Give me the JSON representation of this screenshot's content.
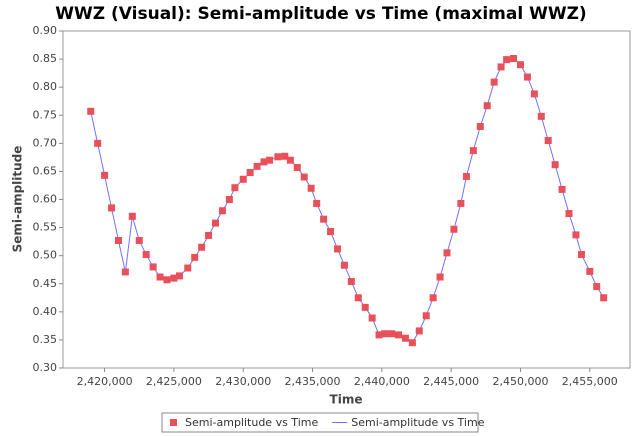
{
  "chart_data": {
    "type": "line",
    "title": "WWZ (Visual): Semi-amplitude vs Time (maximal WWZ)",
    "x_label": "Time",
    "y_label": "Semi-amplitude",
    "x": [
      2419000,
      2419500,
      2420000,
      2420500,
      2421000,
      2421500,
      2422000,
      2422500,
      2423000,
      2423500,
      2424000,
      2424500,
      2425000,
      2425400,
      2426000,
      2426500,
      2427000,
      2427500,
      2428000,
      2428500,
      2429000,
      2429400,
      2430000,
      2430500,
      2431000,
      2431500,
      2431900,
      2432500,
      2433000,
      2433400,
      2433900,
      2434400,
      2434900,
      2435300,
      2435800,
      2436300,
      2436800,
      2437300,
      2437800,
      2438300,
      2438800,
      2439300,
      2439800,
      2440200,
      2440700,
      2441200,
      2441700,
      2442200,
      2442700,
      2443200,
      2443700,
      2444200,
      2444700,
      2445200,
      2445700,
      2446100,
      2446600,
      2447100,
      2447600,
      2448100,
      2448600,
      2449000,
      2449500,
      2450000,
      2450500,
      2451000,
      2451500,
      2452000,
      2452500,
      2453000,
      2453500,
      2454000,
      2454400,
      2455000,
      2455500,
      2456000
    ],
    "series": [
      {
        "name": "Semi-amplitude vs Time",
        "style": "markers",
        "color": "#e8505a",
        "values": [
          0.757,
          0.7,
          0.643,
          0.585,
          0.527,
          0.471,
          0.57,
          0.527,
          0.502,
          0.48,
          0.462,
          0.457,
          0.46,
          0.464,
          0.478,
          0.497,
          0.515,
          0.536,
          0.558,
          0.58,
          0.6,
          0.621,
          0.636,
          0.648,
          0.659,
          0.667,
          0.67,
          0.676,
          0.677,
          0.67,
          0.657,
          0.64,
          0.62,
          0.593,
          0.565,
          0.543,
          0.512,
          0.483,
          0.454,
          0.425,
          0.408,
          0.389,
          0.359,
          0.361,
          0.361,
          0.359,
          0.353,
          0.345,
          0.366,
          0.393,
          0.425,
          0.462,
          0.505,
          0.547,
          0.593,
          0.641,
          0.687,
          0.73,
          0.767,
          0.809,
          0.836,
          0.849,
          0.851,
          0.84,
          0.818,
          0.788,
          0.748,
          0.705,
          0.662,
          0.618,
          0.575,
          0.537,
          0.502,
          0.472,
          0.445,
          0.425
        ]
      },
      {
        "name": "Semi-amplitude vs Time",
        "style": "line",
        "color": "#7070ff",
        "values": [
          0.757,
          0.7,
          0.643,
          0.585,
          0.527,
          0.471,
          0.57,
          0.527,
          0.502,
          0.48,
          0.462,
          0.457,
          0.46,
          0.464,
          0.478,
          0.497,
          0.515,
          0.536,
          0.558,
          0.58,
          0.6,
          0.621,
          0.636,
          0.648,
          0.659,
          0.667,
          0.67,
          0.676,
          0.677,
          0.67,
          0.657,
          0.64,
          0.62,
          0.593,
          0.565,
          0.543,
          0.512,
          0.483,
          0.454,
          0.425,
          0.408,
          0.389,
          0.359,
          0.361,
          0.361,
          0.359,
          0.353,
          0.345,
          0.366,
          0.393,
          0.425,
          0.462,
          0.505,
          0.547,
          0.593,
          0.641,
          0.687,
          0.73,
          0.767,
          0.809,
          0.836,
          0.849,
          0.851,
          0.84,
          0.818,
          0.788,
          0.748,
          0.705,
          0.662,
          0.618,
          0.575,
          0.537,
          0.502,
          0.472,
          0.445,
          0.425
        ]
      }
    ],
    "xlim": [
      2417000,
      2457900
    ],
    "ylim": [
      0.3,
      0.9
    ],
    "xticks": [
      {
        "value": 2420000,
        "label": "2,420,000"
      },
      {
        "value": 2425000,
        "label": "2,425,000"
      },
      {
        "value": 2430000,
        "label": "2,430,000"
      },
      {
        "value": 2435000,
        "label": "2,435,000"
      },
      {
        "value": 2440000,
        "label": "2,440,000"
      },
      {
        "value": 2445000,
        "label": "2,445,000"
      },
      {
        "value": 2450000,
        "label": "2,450,000"
      },
      {
        "value": 2455000,
        "label": "2,455,000"
      }
    ],
    "yticks": [
      {
        "value": 0.3,
        "label": "0.30"
      },
      {
        "value": 0.35,
        "label": "0.35"
      },
      {
        "value": 0.4,
        "label": "0.40"
      },
      {
        "value": 0.45,
        "label": "0.45"
      },
      {
        "value": 0.5,
        "label": "0.50"
      },
      {
        "value": 0.55,
        "label": "0.55"
      },
      {
        "value": 0.6,
        "label": "0.60"
      },
      {
        "value": 0.65,
        "label": "0.65"
      },
      {
        "value": 0.7,
        "label": "0.70"
      },
      {
        "value": 0.75,
        "label": "0.75"
      },
      {
        "value": 0.8,
        "label": "0.80"
      },
      {
        "value": 0.85,
        "label": "0.85"
      },
      {
        "value": 0.9,
        "label": "0.90"
      }
    ],
    "grid": false
  }
}
